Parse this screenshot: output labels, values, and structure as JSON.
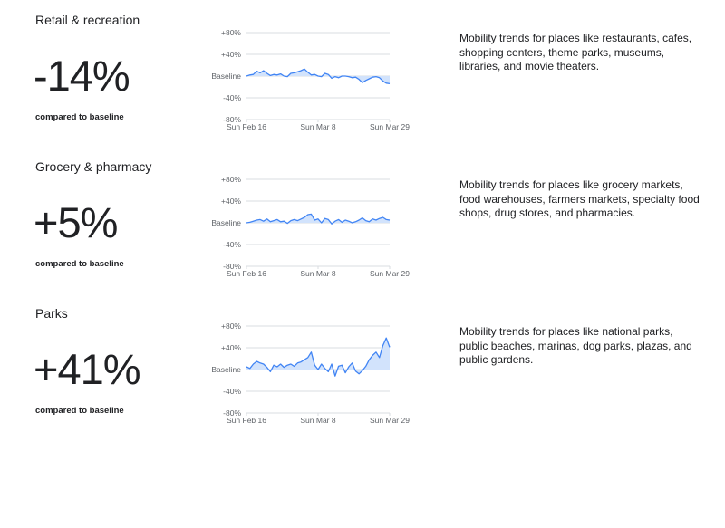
{
  "compared_label": "compared to baseline",
  "colors": {
    "line": "#4285f4",
    "fill": "#d2e3fc",
    "grid": "#dadce0",
    "text": "#202124",
    "tick": "#5f6368"
  },
  "sections": [
    {
      "title": "Retail & recreation",
      "value": "-14%",
      "description": "Mobility trends for places like restaurants, cafes, shopping centers, theme parks, museums, libraries, and movie theaters."
    },
    {
      "title": "Grocery & pharmacy",
      "value": "+5%",
      "description": "Mobility trends for places like grocery markets, food warehouses, farmers markets, specialty food shops, drug stores, and pharmacies."
    },
    {
      "title": "Parks",
      "value": "+41%",
      "description": "Mobility trends for places like national parks, public beaches, marinas, dog parks, plazas, and public gardens."
    }
  ],
  "chart_data": [
    {
      "type": "area",
      "title": "Retail & recreation",
      "y_tick_labels": [
        "+80%",
        "+40%",
        "Baseline",
        "-40%",
        "-80%"
      ],
      "y_ticks": [
        80,
        40,
        0,
        -40,
        -80
      ],
      "x_tick_labels": [
        "Sun Feb 16",
        "Sun Mar 8",
        "Sun Mar 29"
      ],
      "x_ticks": [
        0,
        21,
        42
      ],
      "ylim": [
        -80,
        80
      ],
      "grid": true,
      "x": [
        0,
        1,
        2,
        3,
        4,
        5,
        6,
        7,
        8,
        9,
        10,
        11,
        12,
        13,
        14,
        15,
        16,
        17,
        18,
        19,
        20,
        21,
        22,
        23,
        24,
        25,
        26,
        27,
        28,
        29,
        30,
        31,
        32,
        33,
        34,
        35,
        36,
        37,
        38,
        39,
        40,
        41,
        42
      ],
      "values": [
        0,
        2,
        3,
        9,
        6,
        10,
        5,
        1,
        3,
        2,
        4,
        0,
        -1,
        5,
        6,
        8,
        10,
        13,
        7,
        2,
        3,
        0,
        -1,
        5,
        3,
        -4,
        -1,
        -3,
        0,
        0,
        -1,
        -3,
        -2,
        -6,
        -12,
        -8,
        -5,
        -2,
        -1,
        -3,
        -9,
        -13,
        -14
      ]
    },
    {
      "type": "area",
      "title": "Grocery & pharmacy",
      "y_tick_labels": [
        "+80%",
        "+40%",
        "Baseline",
        "-40%",
        "-80%"
      ],
      "y_ticks": [
        80,
        40,
        0,
        -40,
        -80
      ],
      "x_tick_labels": [
        "Sun Feb 16",
        "Sun Mar 8",
        "Sun Mar 29"
      ],
      "x_ticks": [
        0,
        21,
        42
      ],
      "ylim": [
        -80,
        80
      ],
      "grid": true,
      "x": [
        0,
        1,
        2,
        3,
        4,
        5,
        6,
        7,
        8,
        9,
        10,
        11,
        12,
        13,
        14,
        15,
        16,
        17,
        18,
        19,
        20,
        21,
        22,
        23,
        24,
        25,
        26,
        27,
        28,
        29,
        30,
        31,
        32,
        33,
        34,
        35,
        36,
        37,
        38,
        39,
        40,
        41,
        42
      ],
      "values": [
        0,
        1,
        3,
        5,
        6,
        3,
        7,
        2,
        4,
        6,
        2,
        3,
        -1,
        4,
        6,
        4,
        7,
        10,
        15,
        16,
        5,
        7,
        0,
        8,
        6,
        -2,
        3,
        6,
        1,
        5,
        3,
        0,
        2,
        5,
        9,
        4,
        2,
        7,
        5,
        8,
        10,
        6,
        5
      ]
    },
    {
      "type": "area",
      "title": "Parks",
      "y_tick_labels": [
        "+80%",
        "+40%",
        "Baseline",
        "-40%",
        "-80%"
      ],
      "y_ticks": [
        80,
        40,
        0,
        -40,
        -80
      ],
      "x_tick_labels": [
        "Sun Feb 16",
        "Sun Mar 8",
        "Sun Mar 29"
      ],
      "x_ticks": [
        0,
        21,
        42
      ],
      "ylim": [
        -80,
        80
      ],
      "grid": true,
      "x": [
        0,
        1,
        2,
        3,
        4,
        5,
        6,
        7,
        8,
        9,
        10,
        11,
        12,
        13,
        14,
        15,
        16,
        17,
        18,
        19,
        20,
        21,
        22,
        23,
        24,
        25,
        26,
        27,
        28,
        29,
        30,
        31,
        32,
        33,
        34,
        35,
        36,
        37,
        38,
        39,
        40,
        41,
        42
      ],
      "values": [
        5,
        2,
        10,
        15,
        12,
        10,
        4,
        -4,
        8,
        5,
        10,
        4,
        8,
        10,
        6,
        12,
        14,
        18,
        22,
        32,
        8,
        0,
        10,
        2,
        -4,
        10,
        -12,
        6,
        8,
        -6,
        5,
        12,
        -3,
        -8,
        -2,
        6,
        18,
        26,
        32,
        22,
        44,
        58,
        41
      ]
    }
  ]
}
